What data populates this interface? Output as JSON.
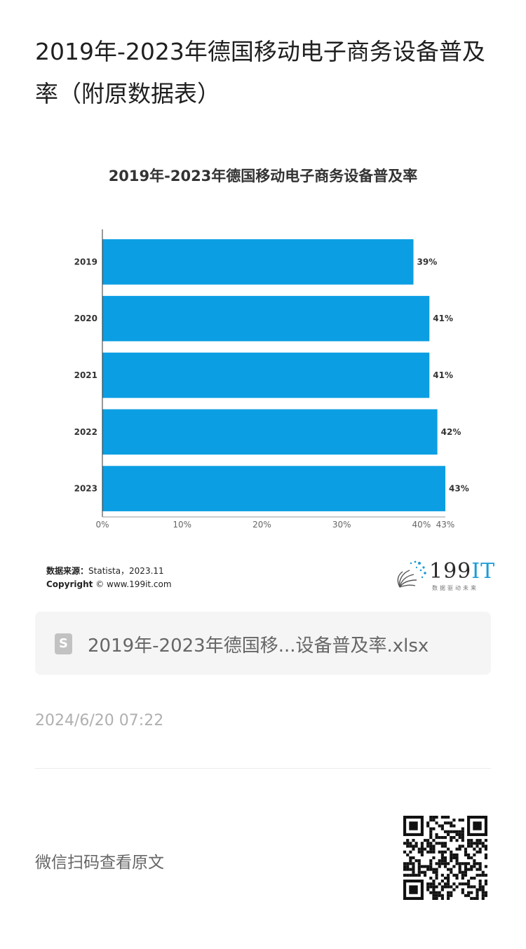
{
  "article": {
    "title": "2019年-2023年德国移动电子商务设备普及率（附原数据表）",
    "timestamp": "2024/6/20 07:22",
    "qr_caption": "微信扫码查看原文"
  },
  "attachment": {
    "icon": "spreadsheet-file-icon",
    "icon_glyph": "S",
    "file_name": "2019年-2023年德国移...设备普及率.xlsx"
  },
  "source": {
    "label": "数据来源：",
    "text": "Statista，2023.11",
    "copyright_label": "Copyright",
    "copyright_text": "© www.199it.com"
  },
  "brand": {
    "name_num": "199",
    "name_it": "IT",
    "tagline": "数据驱动未来",
    "color": "#1a9bd7"
  },
  "chart_data": {
    "type": "bar",
    "orientation": "horizontal",
    "title": "2019年-2023年德国移动电子商务设备普及率",
    "categories": [
      "2019",
      "2020",
      "2021",
      "2022",
      "2023"
    ],
    "values": [
      39,
      41,
      41,
      42,
      43
    ],
    "data_labels": [
      "39%",
      "41%",
      "41%",
      "42%",
      "43%"
    ],
    "x_ticks": [
      {
        "value": 0,
        "label": "0%"
      },
      {
        "value": 10,
        "label": "10%"
      },
      {
        "value": 20,
        "label": "20%"
      },
      {
        "value": 30,
        "label": "30%"
      },
      {
        "value": 40,
        "label": "40%"
      },
      {
        "value": 43,
        "label": "43%"
      }
    ],
    "xlim": [
      0,
      43
    ],
    "grid": false,
    "bar_color": "#0b9ee3"
  }
}
